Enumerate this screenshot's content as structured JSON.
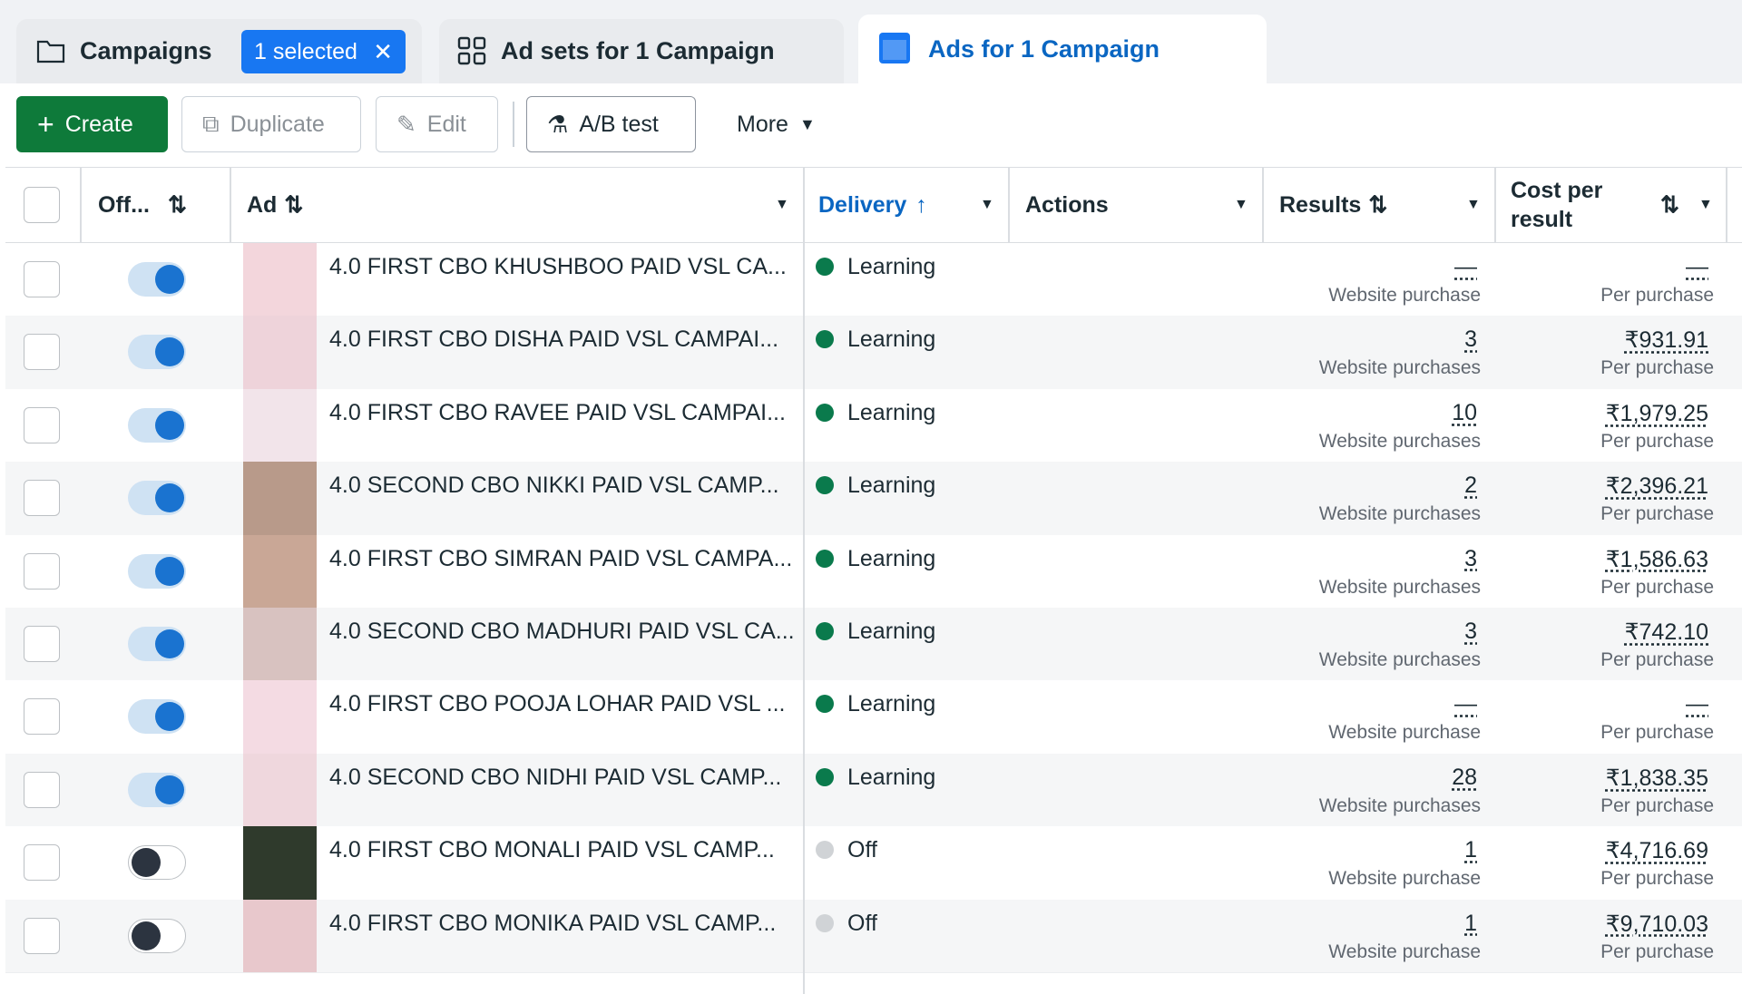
{
  "tabs": {
    "campaigns": "Campaigns",
    "selected": "1 selected",
    "adsets": "Ad sets for 1 Campaign",
    "ads": "Ads for 1 Campaign"
  },
  "toolbar": {
    "create": "Create",
    "duplicate": "Duplicate",
    "edit": "Edit",
    "ab_test": "A/B test",
    "more": "More"
  },
  "table": {
    "columns": {
      "off": "Off...",
      "ad": "Ad",
      "delivery": "Delivery",
      "actions": "Actions",
      "results": "Results",
      "cost": "Cost per result"
    },
    "rows": [
      {
        "active": true,
        "ad": "4.0 FIRST CBO KHUSHBOO PAID VSL CA...",
        "delivery": "Learning",
        "dot_color": "#0a7a4c",
        "results": "—",
        "results_label": "Website purchase",
        "cost": "—",
        "cost_label": "Per purchase"
      },
      {
        "active": true,
        "ad": "4.0 FIRST CBO DISHA PAID VSL CAMPAI...",
        "delivery": "Learning",
        "dot_color": "#0a7a4c",
        "results": "3",
        "results_label": "Website purchases",
        "cost": "₹931.91",
        "cost_label": "Per purchase"
      },
      {
        "active": true,
        "ad": "4.0 FIRST CBO RAVEE PAID VSL CAMPAI...",
        "delivery": "Learning",
        "dot_color": "#0a7a4c",
        "results": "10",
        "results_label": "Website purchases",
        "cost": "₹1,979.25",
        "cost_label": "Per purchase"
      },
      {
        "active": true,
        "ad": "4.0 SECOND CBO NIKKI PAID VSL CAMP...",
        "delivery": "Learning",
        "dot_color": "#0a7a4c",
        "results": "2",
        "results_label": "Website purchases",
        "cost": "₹2,396.21",
        "cost_label": "Per purchase"
      },
      {
        "active": true,
        "ad": "4.0 FIRST CBO SIMRAN PAID VSL CAMPA...",
        "delivery": "Learning",
        "dot_color": "#0a7a4c",
        "results": "3",
        "results_label": "Website purchases",
        "cost": "₹1,586.63",
        "cost_label": "Per purchase"
      },
      {
        "active": true,
        "ad": "4.0 SECOND CBO MADHURI PAID VSL CA...",
        "delivery": "Learning",
        "dot_color": "#0a7a4c",
        "results": "3",
        "results_label": "Website purchases",
        "cost": "₹742.10",
        "cost_label": "Per purchase"
      },
      {
        "active": true,
        "ad": "4.0 FIRST CBO POOJA LOHAR PAID VSL ...",
        "delivery": "Learning",
        "dot_color": "#0a7a4c",
        "results": "—",
        "results_label": "Website purchase",
        "cost": "—",
        "cost_label": "Per purchase"
      },
      {
        "active": true,
        "ad": "4.0 SECOND CBO NIDHI PAID VSL CAMP...",
        "delivery": "Learning",
        "dot_color": "#0a7a4c",
        "results": "28",
        "results_label": "Website purchases",
        "cost": "₹1,838.35",
        "cost_label": "Per purchase"
      },
      {
        "active": false,
        "ad": "4.0 FIRST CBO MONALI PAID VSL CAMP...",
        "delivery": "Off",
        "dot_color": "#d0d3d6",
        "results": "1",
        "results_label": "Website purchase",
        "cost": "₹4,716.69",
        "cost_label": "Per purchase"
      },
      {
        "active": false,
        "ad": "4.0 FIRST CBO MONIKA PAID VSL CAMP...",
        "delivery": "Off",
        "dot_color": "#d0d3d6",
        "results": "1",
        "results_label": "Website purchase",
        "cost": "₹9,710.03",
        "cost_label": "Per purchase"
      }
    ]
  }
}
